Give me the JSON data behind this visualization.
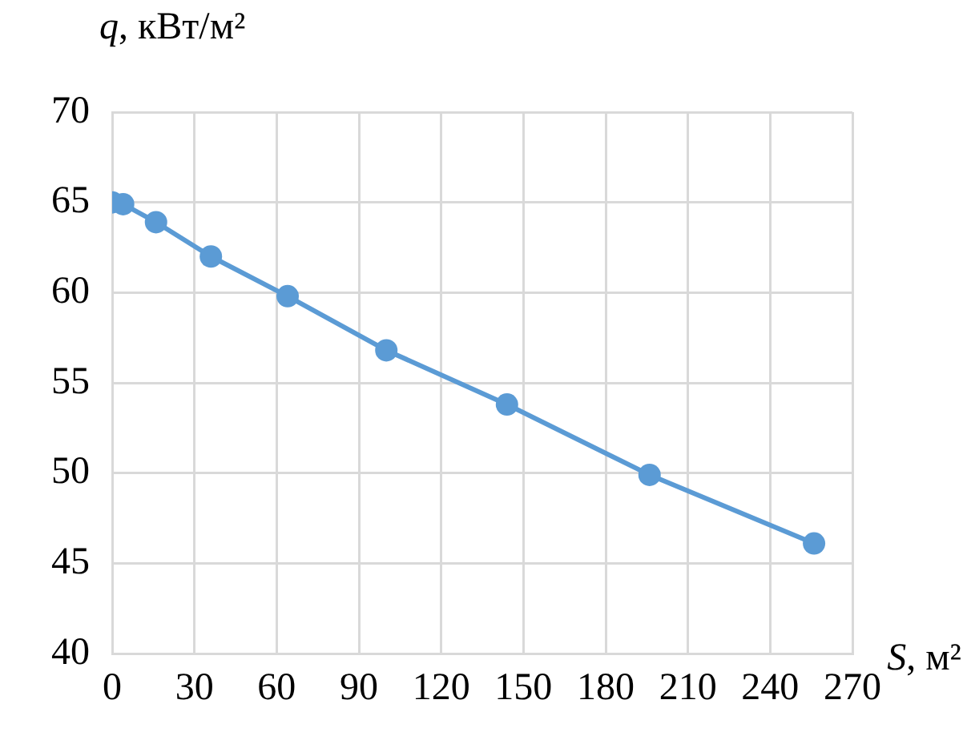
{
  "chart_data": {
    "type": "line",
    "xlabel": "S, м²",
    "ylabel": "q, кВт/м²",
    "x": [
      0,
      4,
      16,
      36,
      64,
      100,
      144,
      196,
      256
    ],
    "series": [
      {
        "color": "#5b9bd5",
        "values": [
          65,
          64.9,
          63.9,
          62.0,
          59.8,
          56.8,
          53.8,
          49.9,
          46.1
        ]
      }
    ],
    "xlim": [
      0,
      270
    ],
    "xticks": [
      0,
      30,
      60,
      90,
      120,
      150,
      180,
      210,
      240,
      270
    ],
    "ylim": [
      40,
      70
    ],
    "yticks": [
      40,
      45,
      50,
      55,
      60,
      65,
      70
    ],
    "grid": true,
    "legend": false,
    "marker": "circle",
    "line_style": "solid"
  }
}
